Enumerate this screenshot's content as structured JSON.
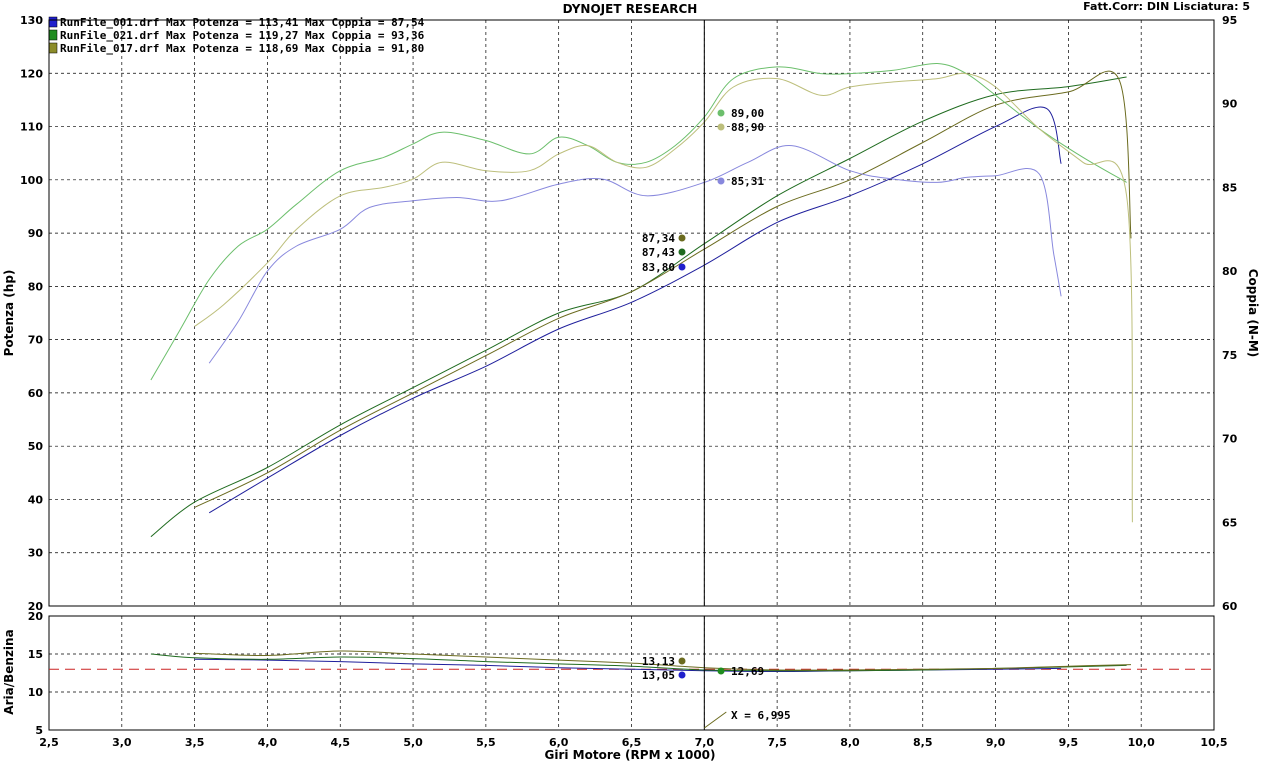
{
  "header": {
    "title": "DYNOJET RESEARCH",
    "corr": "Fatt.Corr: DIN  Lisciatura: 5"
  },
  "legend": [
    {
      "text": "RunFile_001.drf Max Potenza = 113,41    Max Coppia = 87,54",
      "color": "#1f1fcc"
    },
    {
      "text": "RunFile_021.drf Max Potenza = 119,27    Max Coppia = 93,36",
      "color": "#1f8c1f"
    },
    {
      "text": "RunFile_017.drf Max Potenza = 118,69    Max Coppia = 91,80",
      "color": "#8c8c2a"
    }
  ],
  "cursor": {
    "x": 7.0,
    "x_label": "X = 6,995"
  },
  "cursor_labels": {
    "torque": [
      "89,00",
      "88,90",
      "85,31"
    ],
    "power": [
      "87,34",
      "87,43",
      "83,80"
    ],
    "afr": [
      "13,13",
      "13,05",
      "12,69"
    ]
  },
  "chart_data": [
    {
      "type": "line",
      "xlabel": "Giri Motore (RPM x 1000)",
      "ylabel": "Potenza (hp)",
      "ylabel_right": "Coppia (N-M)",
      "xlim": [
        2.5,
        10.5
      ],
      "ylim": [
        20,
        130
      ],
      "ylim_right": [
        60,
        95
      ],
      "x_ticks": [
        "2,5",
        "3,0",
        "3,5",
        "4,0",
        "4,5",
        "5,0",
        "5,5",
        "6,0",
        "6,5",
        "7,0",
        "7,5",
        "8,0",
        "8,5",
        "9,0",
        "9,5",
        "10,0",
        "10,5"
      ],
      "y_ticks": [
        "20",
        "30",
        "40",
        "50",
        "60",
        "70",
        "80",
        "90",
        "100",
        "110",
        "120",
        "130"
      ],
      "y_ticks_right": [
        "60",
        "65",
        "70",
        "75",
        "80",
        "85",
        "90",
        "95"
      ],
      "grid": true,
      "series": [
        {
          "name": "RunFile_001.drf",
          "axis": "power",
          "color": "#1f1f9c",
          "x": [
            3.6,
            4.0,
            4.5,
            5.0,
            5.5,
            6.0,
            6.5,
            7.0,
            7.5,
            8.0,
            8.5,
            9.0,
            9.35,
            9.45
          ],
          "y": [
            37.5,
            44,
            52,
            59,
            65,
            72,
            77,
            84,
            92,
            97,
            103,
            110,
            113.4,
            103
          ]
        },
        {
          "name": "RunFile_021.drf",
          "axis": "power",
          "color": "#1f6b1f",
          "x": [
            3.2,
            3.5,
            4.0,
            4.5,
            5.0,
            5.5,
            6.0,
            6.5,
            7.0,
            7.5,
            8.0,
            8.5,
            9.0,
            9.5,
            9.9
          ],
          "y": [
            33,
            39.5,
            46,
            54,
            61,
            68,
            75,
            79,
            88,
            97,
            104,
            111,
            116,
            117.5,
            119.3
          ]
        },
        {
          "name": "RunFile_017.drf",
          "axis": "power",
          "color": "#6b6b1f",
          "x": [
            3.5,
            4.0,
            4.5,
            5.0,
            5.5,
            6.0,
            6.5,
            7.0,
            7.5,
            8.0,
            8.5,
            9.0,
            9.5,
            9.85,
            9.93
          ],
          "y": [
            38.5,
            45,
            53,
            60,
            67,
            74,
            79,
            87,
            95,
            100,
            107,
            114,
            116.5,
            118.7,
            89
          ]
        },
        {
          "name": "RunFile_001.drf",
          "axis": "torque",
          "color": "#8888dd",
          "x": [
            3.6,
            3.8,
            4.0,
            4.2,
            4.5,
            4.7,
            5.0,
            5.3,
            5.6,
            6.0,
            6.3,
            6.6,
            7.0,
            7.3,
            7.6,
            8.0,
            8.3,
            8.6,
            8.8,
            9.0,
            9.3,
            9.4,
            9.45
          ],
          "y": [
            74.5,
            77,
            80,
            81.5,
            82.5,
            83.8,
            84.2,
            84.4,
            84.2,
            85.2,
            85.5,
            84.5,
            85.3,
            86.5,
            87.5,
            86,
            85.5,
            85.3,
            85.6,
            85.7,
            85.8,
            81,
            78.5
          ]
        },
        {
          "name": "RunFile_021.drf",
          "axis": "torque",
          "color": "#6cbf6c",
          "x": [
            3.2,
            3.4,
            3.6,
            3.8,
            4.0,
            4.2,
            4.5,
            4.8,
            5.0,
            5.2,
            5.5,
            5.8,
            6.0,
            6.2,
            6.4,
            6.6,
            6.8,
            7.0,
            7.2,
            7.5,
            7.8,
            8.0,
            8.3,
            8.6,
            8.8,
            9.0,
            9.3,
            9.6,
            9.9
          ],
          "y": [
            73.5,
            76.5,
            79.5,
            81.5,
            82.5,
            84,
            86,
            86.8,
            87.6,
            88.3,
            87.8,
            87,
            88,
            87.5,
            86.5,
            86.5,
            87.5,
            89.2,
            91.5,
            92.2,
            91.8,
            91.8,
            92,
            92.4,
            91.8,
            90.5,
            88.5,
            86.8,
            85.3
          ]
        },
        {
          "name": "RunFile_017.drf",
          "axis": "torque",
          "color": "#bdbf7c",
          "x": [
            3.5,
            3.7,
            4.0,
            4.2,
            4.5,
            4.8,
            5.0,
            5.2,
            5.5,
            5.8,
            6.0,
            6.2,
            6.4,
            6.6,
            6.8,
            7.0,
            7.2,
            7.5,
            7.8,
            8.0,
            8.3,
            8.6,
            8.8,
            9.0,
            9.3,
            9.6,
            9.9,
            9.94
          ],
          "y": [
            76.7,
            78,
            80.5,
            82.5,
            84.5,
            85,
            85.5,
            86.5,
            86,
            86,
            87,
            87.5,
            86.5,
            86.2,
            87.3,
            88.9,
            91,
            91.5,
            90.5,
            91,
            91.3,
            91.5,
            91.8,
            91,
            88.5,
            86.5,
            84.5,
            65
          ]
        }
      ]
    },
    {
      "type": "line",
      "ylabel": "Aria/Benzina",
      "xlim": [
        2.5,
        10.5
      ],
      "ylim": [
        5,
        20
      ],
      "y_ticks": [
        "5",
        "10",
        "15",
        "20"
      ],
      "reference_line": 13,
      "grid": true,
      "series": [
        {
          "name": "RunFile_001.drf",
          "color": "#1f1f9c",
          "x": [
            3.5,
            4.0,
            4.5,
            5.0,
            5.5,
            6.0,
            6.5,
            7.0,
            7.5,
            8.0,
            8.5,
            9.0,
            9.45
          ],
          "y": [
            14.3,
            14.2,
            14.0,
            13.7,
            13.5,
            13.2,
            13.0,
            12.8,
            12.7,
            12.8,
            12.9,
            13.0,
            13.1
          ]
        },
        {
          "name": "RunFile_021.drf",
          "color": "#1f6b1f",
          "x": [
            3.2,
            3.5,
            4.0,
            4.5,
            5.0,
            5.5,
            6.0,
            6.5,
            7.0,
            7.5,
            8.0,
            8.5,
            9.0,
            9.5,
            9.9
          ],
          "y": [
            15.0,
            14.5,
            14.3,
            14.6,
            14.4,
            14.0,
            13.7,
            13.4,
            12.9,
            12.8,
            12.8,
            12.9,
            13.1,
            13.3,
            13.5
          ]
        },
        {
          "name": "RunFile_017.drf",
          "color": "#6b6b1f",
          "x": [
            3.5,
            4.0,
            4.5,
            5.0,
            5.5,
            6.0,
            6.5,
            7.0,
            7.5,
            8.0,
            8.5,
            9.0,
            9.5,
            9.93
          ],
          "y": [
            15.1,
            14.8,
            15.4,
            15.0,
            14.6,
            14.2,
            13.8,
            13.2,
            12.9,
            12.9,
            13.0,
            13.1,
            13.4,
            13.6
          ]
        }
      ]
    }
  ]
}
